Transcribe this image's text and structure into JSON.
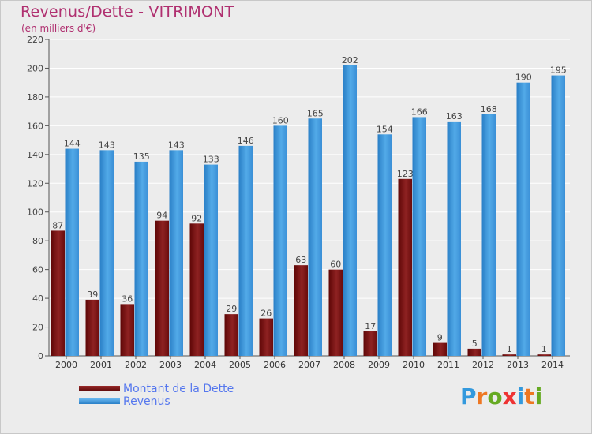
{
  "header": {
    "title": "Revenus/Dette - VITRIMONT",
    "subtitle": "(en milliers d'€)"
  },
  "legend": {
    "debt_label": "Montant de la Dette",
    "revenue_label": "Revenus"
  },
  "logo": {
    "letters": [
      "P",
      "r",
      "o",
      "x",
      "i",
      "t",
      "i"
    ],
    "colors": [
      "#3399dd",
      "#ee7722",
      "#66aa22",
      "#ee3333",
      "#3399dd",
      "#ee7722",
      "#66aa22"
    ]
  },
  "colors": {
    "debt": "#7a1010",
    "revenue": "#3f98dc",
    "background": "#ececec",
    "title": "#b03070"
  },
  "chart_data": {
    "type": "bar",
    "categories": [
      "2000",
      "2001",
      "2002",
      "2003",
      "2004",
      "2005",
      "2006",
      "2007",
      "2008",
      "2009",
      "2010",
      "2011",
      "2012",
      "2013",
      "2014"
    ],
    "series": [
      {
        "name": "Montant de la Dette",
        "values": [
          87,
          39,
          36,
          94,
          92,
          29,
          26,
          63,
          60,
          17,
          123,
          9,
          5,
          1,
          1
        ]
      },
      {
        "name": "Revenus",
        "values": [
          144,
          143,
          135,
          143,
          133,
          146,
          160,
          165,
          202,
          154,
          166,
          163,
          168,
          190,
          195
        ]
      }
    ],
    "yticks": [
      0,
      20,
      40,
      60,
      80,
      100,
      120,
      140,
      160,
      180,
      200,
      220
    ],
    "ylim": [
      0,
      220
    ],
    "grid": true,
    "legend_position": "bottom-left"
  }
}
